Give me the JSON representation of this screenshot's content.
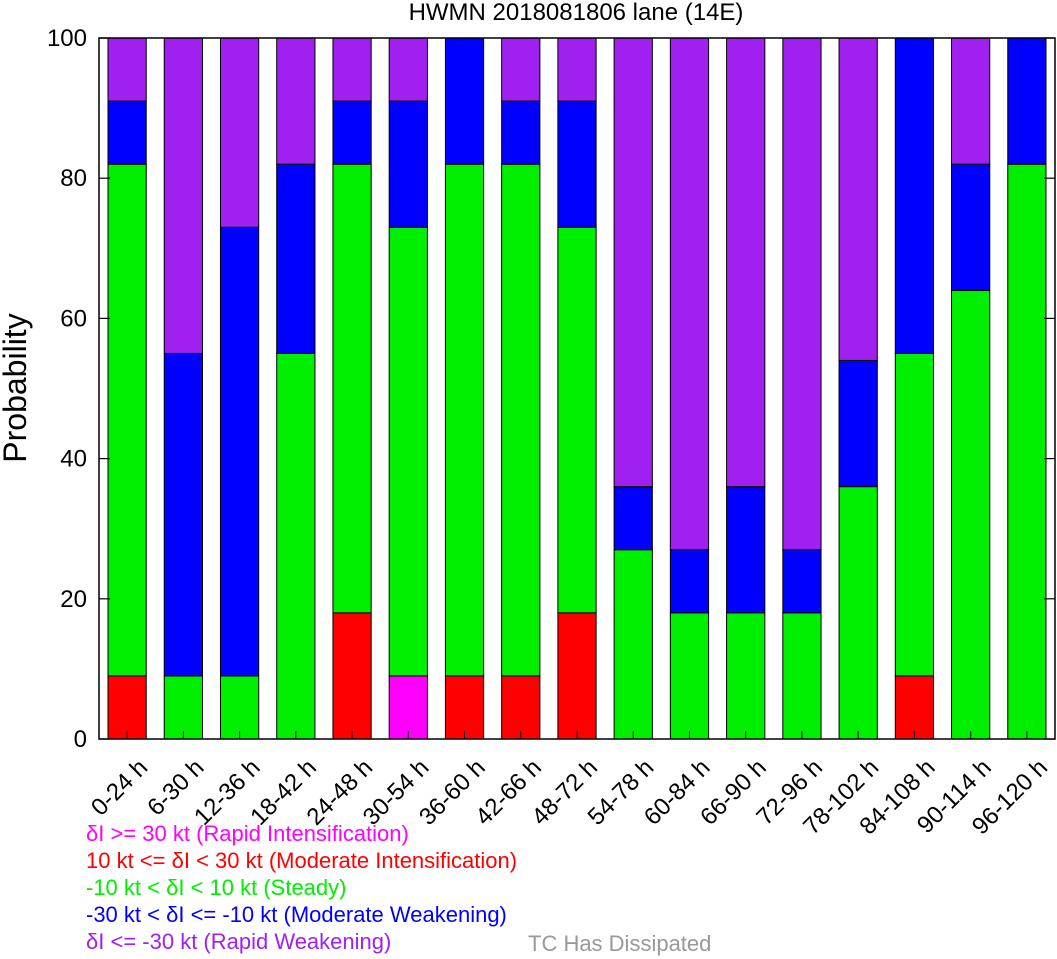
{
  "chart_data": {
    "type": "bar",
    "stacked": true,
    "title": "HWMN 2018081806 lane (14E)",
    "xlabel": "",
    "ylabel": "Probability",
    "ylim": [
      0,
      100
    ],
    "yticks": [
      0,
      20,
      40,
      60,
      80,
      100
    ],
    "categories": [
      "0-24 h",
      "6-30 h",
      "12-36 h",
      "18-42 h",
      "24-48 h",
      "30-54 h",
      "36-60 h",
      "42-66 h",
      "48-72 h",
      "54-78 h",
      "60-84 h",
      "66-90 h",
      "72-96 h",
      "78-102 h",
      "84-108 h",
      "90-114 h",
      "96-120 h"
    ],
    "series": [
      {
        "name": "δI >= 30 kt (Rapid Intensification)",
        "color": "#ff00ff",
        "values": [
          0,
          0,
          0,
          0,
          0,
          9,
          0,
          0,
          0,
          0,
          0,
          0,
          0,
          0,
          0,
          0,
          0
        ]
      },
      {
        "name": "10 kt <= δI < 30 kt (Moderate Intensification)",
        "color": "#ff0000",
        "values": [
          9,
          0,
          0,
          0,
          18,
          0,
          9,
          9,
          18,
          0,
          0,
          0,
          0,
          0,
          9,
          0,
          0
        ]
      },
      {
        "name": "-10 kt < δI < 10 kt (Steady)",
        "color": "#00ee00",
        "values": [
          73,
          9,
          9,
          55,
          64,
          64,
          73,
          73,
          55,
          27,
          18,
          18,
          18,
          36,
          46,
          64,
          82
        ]
      },
      {
        "name": "-30 kt < δI <= -10 kt (Moderate Weakening)",
        "color": "#0000ff",
        "values": [
          9,
          46,
          64,
          27,
          9,
          18,
          18,
          9,
          18,
          9,
          9,
          18,
          9,
          18,
          45,
          18,
          18
        ]
      },
      {
        "name": "δI <= -30 kt (Rapid Weakening)",
        "color": "#a020f0",
        "values": [
          9,
          45,
          27,
          18,
          9,
          9,
          0,
          9,
          9,
          64,
          73,
          64,
          73,
          46,
          0,
          18,
          0
        ]
      }
    ],
    "grid": false,
    "legend": "bottom-left"
  },
  "legend": {
    "items": [
      {
        "text": "δI >= 30 kt (Rapid Intensification)",
        "color": "#ff00ff"
      },
      {
        "text": "10 kt <= δI < 30 kt (Moderate Intensification)",
        "color": "#ff0000"
      },
      {
        "text": "-10 kt < δI < 10 kt (Steady)",
        "color": "#00ee00"
      },
      {
        "text": "-30 kt < δI <= -10 kt (Moderate Weakening)",
        "color": "#0000ff"
      },
      {
        "text": "δI <= -30 kt (Rapid Weakening)",
        "color": "#a020f0"
      }
    ],
    "dissipated": {
      "text": "TC Has Dissipated",
      "color": "#999999"
    }
  }
}
